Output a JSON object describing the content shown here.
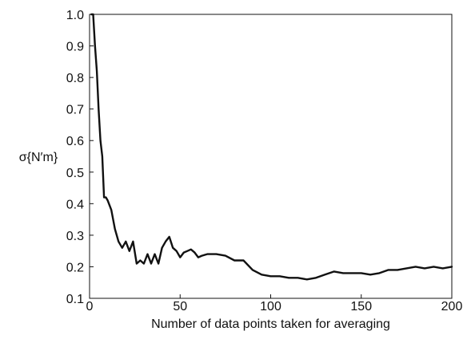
{
  "chart_data": {
    "type": "line",
    "title": "",
    "xlabel": "Number of data points taken for averaging",
    "ylabel": "σ{N′m}",
    "xlim": [
      0,
      200
    ],
    "ylim": [
      0.1,
      1.0
    ],
    "xticks": [
      0,
      50,
      100,
      150,
      200
    ],
    "xtick_labels": [
      "0",
      "50",
      "100",
      "150",
      "200"
    ],
    "yticks": [
      0.1,
      0.2,
      0.3,
      0.4,
      0.5,
      0.6,
      0.7,
      0.8,
      0.9,
      1.0
    ],
    "ytick_labels": [
      "0.1",
      "0.2",
      "0.3",
      "0.4",
      "0.5",
      "0.6",
      "0.7",
      "0.8",
      "0.9",
      "1.0"
    ],
    "grid": false,
    "line_color": "#111111",
    "series": [
      {
        "x": [
          1,
          2,
          3,
          4,
          5,
          6,
          7,
          8,
          9,
          10,
          12,
          14,
          16,
          18,
          20,
          22,
          24,
          26,
          28,
          30,
          32,
          34,
          36,
          38,
          40,
          42,
          44,
          46,
          48,
          50,
          52,
          54,
          56,
          58,
          60,
          62,
          65,
          70,
          75,
          80,
          85,
          90,
          95,
          100,
          105,
          110,
          115,
          120,
          125,
          130,
          135,
          140,
          145,
          150,
          155,
          160,
          165,
          170,
          175,
          180,
          185,
          190,
          195,
          200
        ],
        "y": [
          1.0,
          1.0,
          0.9,
          0.82,
          0.7,
          0.6,
          0.55,
          0.42,
          0.42,
          0.41,
          0.38,
          0.32,
          0.28,
          0.26,
          0.28,
          0.25,
          0.28,
          0.21,
          0.22,
          0.21,
          0.24,
          0.21,
          0.24,
          0.21,
          0.26,
          0.28,
          0.295,
          0.26,
          0.25,
          0.23,
          0.245,
          0.25,
          0.255,
          0.245,
          0.23,
          0.235,
          0.24,
          0.24,
          0.235,
          0.22,
          0.22,
          0.19,
          0.175,
          0.17,
          0.17,
          0.165,
          0.165,
          0.16,
          0.165,
          0.175,
          0.185,
          0.18,
          0.18,
          0.18,
          0.175,
          0.18,
          0.19,
          0.19,
          0.195,
          0.2,
          0.195,
          0.2,
          0.195,
          0.2
        ]
      }
    ]
  }
}
